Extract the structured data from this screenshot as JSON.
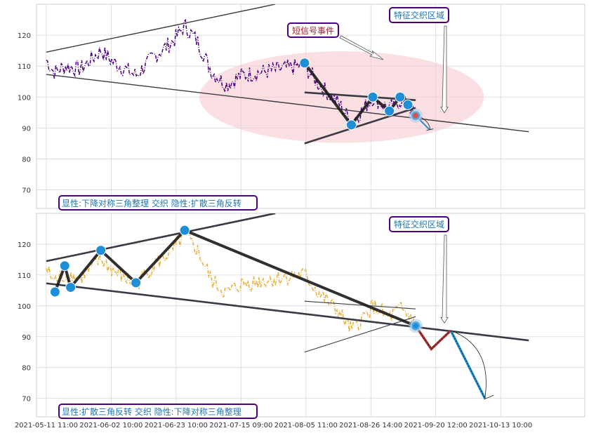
{
  "chart_data": [
    {
      "type": "line",
      "panel": "top",
      "price_color": "#4b0082",
      "ylim": [
        64,
        130
      ],
      "yticks": [
        70,
        80,
        90,
        100,
        110,
        120
      ],
      "x_range": [
        -100,
        5525
      ],
      "annotations": {
        "pattern_label": "显性:下降对称三角整理 交织 隐性:扩散三角反转",
        "region_label": "特征交织区域",
        "event_label": "短信号事件"
      },
      "highlight_ellipse": {
        "cx": 3030,
        "cy": 100,
        "rx": 1460,
        "ry": 14.8,
        "color": "#f5c6cb"
      },
      "pivots": {
        "x": [
          2650,
          3130,
          3350,
          3520,
          3630,
          3710,
          3790
        ],
        "y": [
          111,
          91,
          100,
          95.5,
          100,
          97.5,
          94
        ]
      },
      "trend_lines": [
        {
          "x": [
            0,
            2350
          ],
          "y": [
            114.5,
            130
          ]
        },
        {
          "x": [
            0,
            4950
          ],
          "y": [
            107.3,
            88.8
          ]
        },
        {
          "x": [
            2650,
            3790
          ],
          "y": [
            101.5,
            99
          ]
        },
        {
          "x": [
            2650,
            3790
          ],
          "y": [
            85,
            96.5
          ]
        }
      ]
    },
    {
      "type": "line",
      "panel": "bottom",
      "price_color": "#e8b03a",
      "ylim": [
        64,
        130
      ],
      "yticks": [
        70,
        80,
        90,
        100,
        110,
        120
      ],
      "x_range": [
        -100,
        5525
      ],
      "annotations": {
        "pattern_label": "显性:扩散三角反转 交织 隐性:下降对称三角整理",
        "region_label": "特征交织区域"
      },
      "pivots": {
        "x": [
          90,
          190,
          250,
          560,
          920,
          1420,
          3790
        ],
        "y": [
          104.5,
          113,
          106,
          118,
          107.5,
          124.5,
          93.5
        ]
      },
      "trend_lines": [
        {
          "x": [
            0,
            2350
          ],
          "y": [
            114.5,
            130
          ]
        },
        {
          "x": [
            0,
            4950
          ],
          "y": [
            107.3,
            88.8
          ]
        },
        {
          "x": [
            2650,
            3790
          ],
          "y": [
            101.5,
            99
          ]
        },
        {
          "x": [
            2650,
            3790
          ],
          "y": [
            85,
            96.5
          ]
        }
      ],
      "projection_red": {
        "x": [
          3790,
          3950,
          4150
        ],
        "y": [
          93.5,
          86,
          92
        ]
      },
      "projection_blue": {
        "x": [
          4150,
          4500
        ],
        "y": [
          92,
          70
        ]
      }
    }
  ],
  "x_axis": {
    "tick_positions": [
      0,
      666,
      1332,
      1998,
      2664,
      3330,
      3996,
      4662
    ],
    "tick_labels": [
      "2021-05-11 11:00",
      "2021-06-02 10:00",
      "2021-06-23 10:00",
      "2021-07-15 09:00",
      "2021-08-05 11:00",
      "2021-08-26 14:00",
      "2021-09-20 12:00",
      "2021-10-13 10:00"
    ]
  },
  "colors": {
    "label_text": "#1f77b4",
    "label_border": "#4b0082",
    "event_text": "#a0232e",
    "pivot_marker": "#1e8fd6",
    "pattern_line": "#1a1a1a",
    "trend_line": "#3a3a44",
    "red_projection": "#b03030",
    "blue_projection": "#1e8fd6"
  }
}
